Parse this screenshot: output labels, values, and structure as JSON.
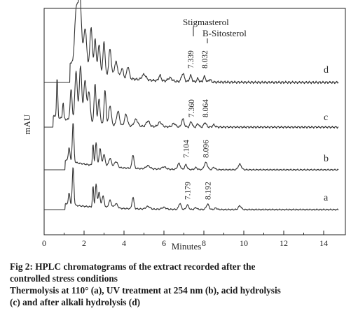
{
  "chart_data": {
    "type": "line",
    "xlabel": "Minutes",
    "ylabel": "mAU",
    "xlim": [
      0,
      14.8
    ],
    "xticks": [
      0,
      2,
      4,
      6,
      8,
      10,
      12,
      14
    ],
    "grid": false,
    "peak_labels": {
      "top": "Stigmasterol",
      "second": "B-Sitosterol"
    },
    "series": [
      {
        "name": "d",
        "baseline_rise": 0.3,
        "peaks": [
          [
            1.55,
            0.36,
            0.06
          ],
          [
            1.65,
            0.75,
            0.07
          ],
          [
            1.8,
            1.0,
            0.07
          ],
          [
            2.05,
            0.6,
            0.08
          ],
          [
            2.35,
            0.66,
            0.06
          ],
          [
            2.55,
            0.5,
            0.05
          ],
          [
            2.75,
            0.42,
            0.06
          ],
          [
            3.0,
            0.5,
            0.05
          ],
          [
            3.3,
            0.4,
            0.06
          ],
          [
            3.6,
            0.22,
            0.08
          ],
          [
            3.9,
            0.14,
            0.06
          ],
          [
            4.2,
            0.18,
            0.06
          ],
          [
            5.0,
            0.08,
            0.1
          ],
          [
            5.8,
            0.08,
            0.06
          ],
          [
            6.3,
            0.05,
            0.1
          ],
          [
            6.95,
            0.12,
            0.07
          ],
          [
            7.34,
            0.09,
            0.06
          ],
          [
            7.7,
            0.05,
            0.05
          ],
          [
            8.03,
            0.08,
            0.06
          ],
          [
            8.3,
            0.04,
            0.05
          ]
        ],
        "rt_labels": [
          {
            "rt": 7.339,
            "label": "7.339"
          },
          {
            "rt": 8.032,
            "label": "8.032"
          }
        ]
      },
      {
        "name": "c",
        "baseline_rise": 0.2,
        "peaks": [
          [
            0.65,
            0.7,
            0.03
          ],
          [
            0.95,
            0.3,
            0.03
          ],
          [
            1.35,
            0.55,
            0.05
          ],
          [
            1.6,
            0.9,
            0.06
          ],
          [
            1.82,
            1.0,
            0.06
          ],
          [
            2.05,
            0.75,
            0.07
          ],
          [
            2.25,
            0.55,
            0.06
          ],
          [
            2.55,
            0.7,
            0.05
          ],
          [
            2.75,
            0.45,
            0.05
          ],
          [
            3.05,
            0.6,
            0.05
          ],
          [
            3.3,
            0.35,
            0.06
          ],
          [
            3.7,
            0.25,
            0.07
          ],
          [
            4.1,
            0.2,
            0.07
          ],
          [
            4.6,
            0.12,
            0.09
          ],
          [
            5.2,
            0.1,
            0.08
          ],
          [
            5.8,
            0.08,
            0.09
          ],
          [
            6.5,
            0.06,
            0.08
          ],
          [
            6.95,
            0.14,
            0.06
          ],
          [
            7.36,
            0.1,
            0.05
          ],
          [
            7.7,
            0.06,
            0.05
          ],
          [
            8.06,
            0.08,
            0.06
          ],
          [
            8.5,
            0.04,
            0.06
          ]
        ],
        "rt_labels": [
          {
            "rt": 7.36,
            "label": "7.360"
          },
          {
            "rt": 8.064,
            "label": "8.064"
          }
        ]
      },
      {
        "name": "b",
        "baseline_rise": 0.25,
        "peaks": [
          [
            1.25,
            0.35,
            0.04
          ],
          [
            1.45,
            1.0,
            0.04
          ],
          [
            2.45,
            0.55,
            0.03
          ],
          [
            2.6,
            0.6,
            0.04
          ],
          [
            2.8,
            0.45,
            0.05
          ],
          [
            3.0,
            0.3,
            0.06
          ],
          [
            3.3,
            0.22,
            0.07
          ],
          [
            3.6,
            0.15,
            0.08
          ],
          [
            4.45,
            0.35,
            0.05
          ],
          [
            5.2,
            0.08,
            0.1
          ],
          [
            6.0,
            0.06,
            0.1
          ],
          [
            6.75,
            0.15,
            0.07
          ],
          [
            7.1,
            0.12,
            0.06
          ],
          [
            7.6,
            0.05,
            0.06
          ],
          [
            8.1,
            0.18,
            0.08
          ],
          [
            8.5,
            0.06,
            0.06
          ],
          [
            9.8,
            0.14,
            0.08
          ]
        ],
        "rt_labels": [
          {
            "rt": 7.104,
            "label": "7.104"
          },
          {
            "rt": 8.096,
            "label": "8.096"
          }
        ]
      },
      {
        "name": "a",
        "baseline_rise": 0.15,
        "peaks": [
          [
            1.25,
            0.3,
            0.04
          ],
          [
            1.45,
            1.0,
            0.04
          ],
          [
            2.45,
            0.55,
            0.03
          ],
          [
            2.6,
            0.6,
            0.04
          ],
          [
            2.75,
            0.4,
            0.05
          ],
          [
            2.95,
            0.3,
            0.06
          ],
          [
            3.3,
            0.2,
            0.07
          ],
          [
            3.6,
            0.12,
            0.08
          ],
          [
            4.45,
            0.3,
            0.05
          ],
          [
            5.2,
            0.07,
            0.1
          ],
          [
            6.0,
            0.05,
            0.1
          ],
          [
            6.8,
            0.16,
            0.06
          ],
          [
            7.18,
            0.12,
            0.06
          ],
          [
            7.6,
            0.05,
            0.06
          ],
          [
            8.19,
            0.14,
            0.07
          ],
          [
            8.6,
            0.04,
            0.06
          ],
          [
            9.8,
            0.1,
            0.07
          ]
        ],
        "rt_labels": [
          {
            "rt": 7.179,
            "label": "7.179"
          },
          {
            "rt": 8.192,
            "label": "8.192"
          }
        ]
      }
    ]
  },
  "caption": {
    "line1": "Fig 2: HPLC chromatograms of the extract recorded after the",
    "line2": "controlled stress conditions",
    "line3": "Thermolysis at 110° (a), UV treatment at 254 nm (b), acid hydrolysis",
    "line4": "(c) and after alkali hydrolysis (d)"
  }
}
